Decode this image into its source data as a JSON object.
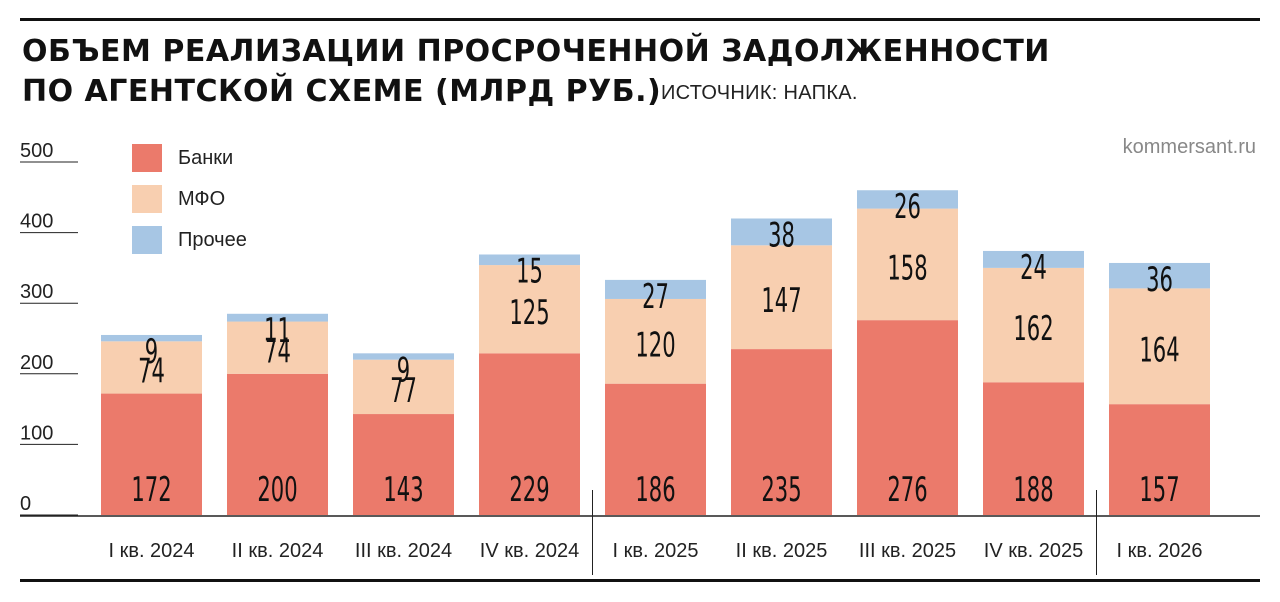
{
  "title": {
    "line1": "ОБЪЕМ РЕАЛИЗАЦИИ ПРОСРОЧЕННОЙ ЗАДОЛЖЕННОСТИ",
    "line2": "ПО АГЕНТСКОЙ СХЕМЕ (МЛРД РУБ.)"
  },
  "source": "ИСТОЧНИК: НАПКА.",
  "credit": "kommersant.ru",
  "colors": {
    "banks": "#eb7a6b",
    "mfo": "#f8cfb0",
    "other": "#a7c6e4"
  },
  "legend": [
    {
      "label": "Банки",
      "color": "#eb7a6b"
    },
    {
      "label": "МФО",
      "color": "#f8cfb0"
    },
    {
      "label": "Прочее",
      "color": "#a7c6e4"
    }
  ],
  "chart_data": {
    "type": "bar",
    "stacked": true,
    "categories": [
      "I кв. 2024",
      "II кв. 2024",
      "III кв. 2024",
      "IV кв. 2024",
      "I кв. 2025",
      "II кв. 2025",
      "III кв. 2025",
      "IV кв. 2025",
      "I кв. 2026"
    ],
    "series": [
      {
        "name": "Банки",
        "values": [
          172,
          200,
          143,
          229,
          186,
          235,
          276,
          188,
          157
        ]
      },
      {
        "name": "МФО",
        "values": [
          74,
          74,
          77,
          125,
          120,
          147,
          158,
          162,
          164
        ]
      },
      {
        "name": "Прочее",
        "values": [
          9,
          11,
          9,
          15,
          27,
          38,
          26,
          24,
          36
        ]
      }
    ],
    "yticks": [
      "0",
      "100",
      "200",
      "300",
      "400",
      "500"
    ],
    "ylim": [
      0,
      500
    ],
    "grid": false,
    "legend_position": "top-left",
    "year_separators_after": [
      3,
      7
    ]
  }
}
